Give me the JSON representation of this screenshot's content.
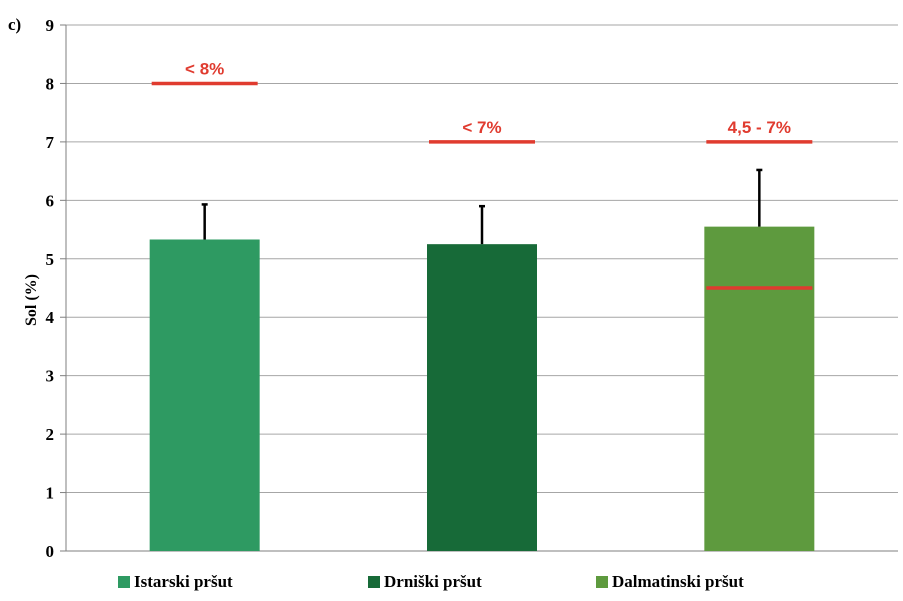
{
  "chart_data": {
    "type": "bar",
    "panel_label": "c)",
    "ylabel": "Sol (%)",
    "xlabel": "",
    "ylim": [
      0,
      9
    ],
    "yticks": [
      0,
      1,
      2,
      3,
      4,
      5,
      6,
      7,
      8,
      9
    ],
    "grid": true,
    "legend_position": "bottom",
    "categories": [
      "Istarski pršut",
      "Drniški pršut",
      "Dalmatinski pršut"
    ],
    "values": [
      5.33,
      5.25,
      5.55
    ],
    "error_plus": [
      0.6,
      0.65,
      0.97
    ],
    "colors": [
      "#2e9a62",
      "#176a38",
      "#5e9a3e"
    ],
    "limit_color": "#e03b2f",
    "limits": [
      {
        "label": "< 8%",
        "upper": 8,
        "lower": null
      },
      {
        "label": "< 7%",
        "upper": 7,
        "lower": null
      },
      {
        "label": "4,5 - 7%",
        "upper": 7,
        "lower": 4.5
      }
    ]
  }
}
